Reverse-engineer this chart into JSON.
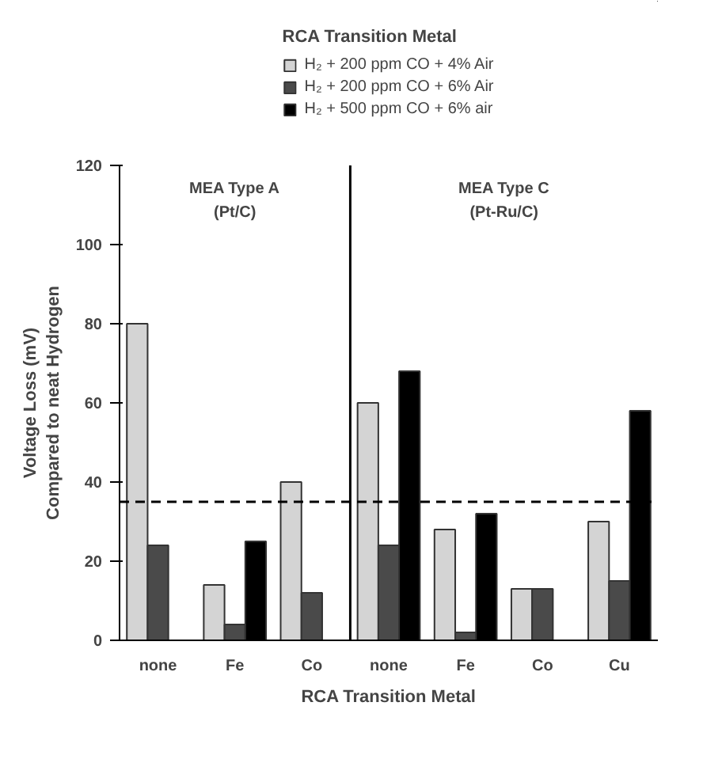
{
  "chart_data": {
    "type": "bar",
    "categories": [
      "none",
      "Fe",
      "Co",
      "none",
      "Fe",
      "Co",
      "Cu"
    ],
    "series": [
      {
        "name": "H₂ + 200 ppm CO + 4% Air",
        "color": "#d4d4d4",
        "values": [
          80,
          14,
          40,
          60,
          28,
          13,
          30
        ]
      },
      {
        "name": "H₂ + 200 ppm CO + 6% Air",
        "color": "#4a4a4a",
        "values": [
          24,
          4,
          12,
          24,
          2,
          13,
          15
        ]
      },
      {
        "name": "H₂ + 500 ppm CO + 6% air",
        "color": "#000000",
        "values": [
          null,
          25,
          null,
          68,
          32,
          null,
          58
        ]
      }
    ],
    "xlabel": "RCA Transition Metal",
    "ylabel": "Voltage Loss (mV)\nCompared to neat Hydrogen",
    "legend_title": "RCA Transition Metal",
    "legend": "top",
    "ylim": [
      0,
      120
    ],
    "yticks": [
      0,
      20,
      40,
      60,
      80,
      100,
      120
    ],
    "grid": false,
    "ref_lines": [
      {
        "axis": "y",
        "value": 35,
        "line_style": "dashed",
        "color": "#000000"
      }
    ],
    "annotations": [
      "MEA Type A",
      "(Pt/C)",
      "MEA Type C",
      "(Pt-Ru/C)"
    ]
  }
}
